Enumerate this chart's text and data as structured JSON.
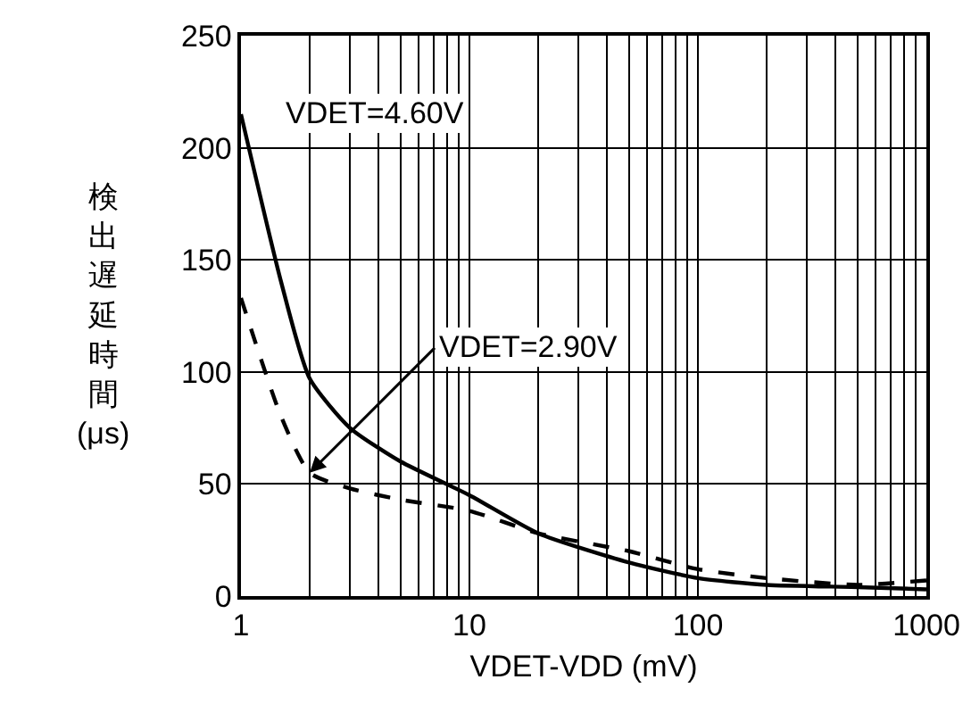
{
  "chart_data": {
    "type": "line",
    "xlabel": "VDET-VDD (mV)",
    "ylabel": "検出遅延時間(μs)",
    "log": "x",
    "grid": true,
    "xlim": [
      1,
      1000
    ],
    "xticks": [
      1,
      10,
      100,
      1000
    ],
    "ylim": [
      0,
      250
    ],
    "yticks": [
      0,
      50,
      100,
      150,
      200,
      250
    ],
    "x": [
      1,
      1.5,
      2,
      3,
      5,
      10,
      20,
      50,
      100,
      200,
      500,
      1000
    ],
    "series": [
      {
        "color": "#000000",
        "line_style": "solid",
        "values": [
          215,
          140,
          97,
          75,
          60,
          45,
          28,
          15,
          8,
          5,
          4,
          3
        ]
      },
      {
        "color": "#000000",
        "line_style": "dashed",
        "values": [
          133,
          80,
          55,
          48,
          43,
          38,
          28,
          20,
          12,
          8,
          5,
          7
        ]
      }
    ],
    "annotations": [
      "VDET=4.60V",
      {
        "text": "VDET=2.90V",
        "x": 2,
        "y": 55
      }
    ]
  }
}
